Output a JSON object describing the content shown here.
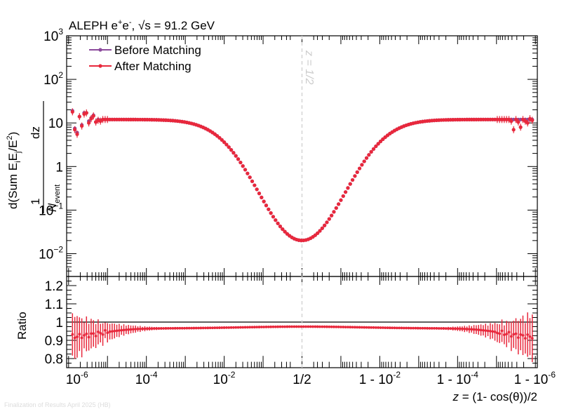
{
  "chart_data": [
    {
      "panel": "top",
      "type": "scatter",
      "title": "ALEPH e⁺e⁻, √s = 91.2 GeV",
      "title_parts": {
        "experiment": "ALEPH e",
        "plus": "+",
        "e2": "e",
        "minus": "-",
        "comma": ",",
        "sqrt": "√s = 91.2 GeV"
      },
      "ylabel": {
        "numerator": "1",
        "denominator_N": "N",
        "denominator_sub": "event",
        "main": "d(Sum E",
        "sub_i": "i",
        "mid": "E",
        "sub_j": "j",
        "slash": "/E",
        "sup_2": "2",
        "close": ")",
        "dz": "dz"
      },
      "yscale": "log",
      "ylim": [
        0.003,
        1000
      ],
      "yticks": [
        {
          "value": 1000,
          "label_base": "10",
          "label_exp": "3"
        },
        {
          "value": 100,
          "label_base": "10",
          "label_exp": "2"
        },
        {
          "value": 10,
          "label_base": "10",
          "label_exp": ""
        },
        {
          "value": 1,
          "label_base": "1",
          "label_exp": ""
        },
        {
          "value": 0.1,
          "label_base": "10",
          "label_exp": "−1"
        },
        {
          "value": 0.01,
          "label_base": "10",
          "label_exp": "−2"
        }
      ],
      "x_description": "Symmetric log axis: u from -6 (z=1e-6) to 0 (z=1/2) to +6 (1-z=1e-6)",
      "xlim": [
        -6.05,
        6.05
      ],
      "annotation": {
        "text": "z = 1/2",
        "x_u": 0
      },
      "legend": {
        "placement": "top-left",
        "entries": [
          {
            "label": "Before Matching",
            "color": "#8b4a9c"
          },
          {
            "label": "After Matching",
            "color": "#e8283c"
          }
        ]
      },
      "series": [
        {
          "name": "Before Matching",
          "color": "#8b4a9c",
          "noise_side": {
            "u_at": [
              -5.9,
              -5.85,
              -5.8,
              -5.75,
              -5.7,
              -5.65,
              -5.6,
              -5.55,
              -5.5,
              -5.45,
              -5.4,
              -5.35,
              -5.3,
              -5.25,
              -5.2
            ],
            "y": [
              19,
              7.5,
              6,
              11,
              14,
              9,
              17,
              17,
              11,
              10,
              13,
              15,
              10.5,
              12,
              11.5
            ]
          }
        },
        {
          "name": "After Matching",
          "color": "#e8283c",
          "noise_side": {
            "u_at": [
              -5.9,
              -5.85,
              -5.8,
              -5.75,
              -5.7,
              -5.65,
              -5.6,
              -5.55,
              -5.5,
              -5.45,
              -5.4,
              -5.35,
              -5.3,
              -5.25,
              -5.2
            ],
            "y": [
              18,
              7,
              5.5,
              10.5,
              14,
              8.5,
              16,
              17,
              10,
              9.5,
              12.5,
              14.5,
              10.5,
              11.5,
              11
            ]
          }
        }
      ],
      "curve_shape": {
        "plateau": 12,
        "minimum": 0.021,
        "min_at_u": 0
      }
    },
    {
      "panel": "bottom",
      "type": "scatter",
      "ylabel": "Ratio",
      "ylim": [
        0.75,
        1.25
      ],
      "yticks": [
        "0.8",
        "0.9",
        "1",
        "1.1",
        "1.2"
      ],
      "ytick_values": [
        0.8,
        0.9,
        1.0,
        1.1,
        1.2
      ],
      "reference_line": 1.0,
      "xlabel_parts": {
        "z": "z",
        "rest": " = (1- cos(θ))/2"
      },
      "xticks": [
        {
          "u": -6,
          "label_base": "10",
          "label_exp": "-6"
        },
        {
          "u": -4,
          "label_base": "10",
          "label_exp": "-4"
        },
        {
          "u": -2,
          "label_base": "10",
          "label_exp": "-2"
        },
        {
          "u": 0,
          "label_base": "1/2",
          "label_exp": ""
        },
        {
          "u": 2,
          "label_base": "1 - 10",
          "label_exp": "-2"
        },
        {
          "u": 4,
          "label_base": "1 - 10",
          "label_exp": "-4"
        },
        {
          "u": 6,
          "label_base": "1 - 10",
          "label_exp": "-6"
        }
      ],
      "ratio_profile": {
        "edge": 0.92,
        "center": 0.975,
        "plateau": 0.965
      },
      "error_profile": {
        "edge": 0.14,
        "inner": 0.005
      }
    }
  ],
  "footnote": "Finalization of Results April 2025 (HB)"
}
